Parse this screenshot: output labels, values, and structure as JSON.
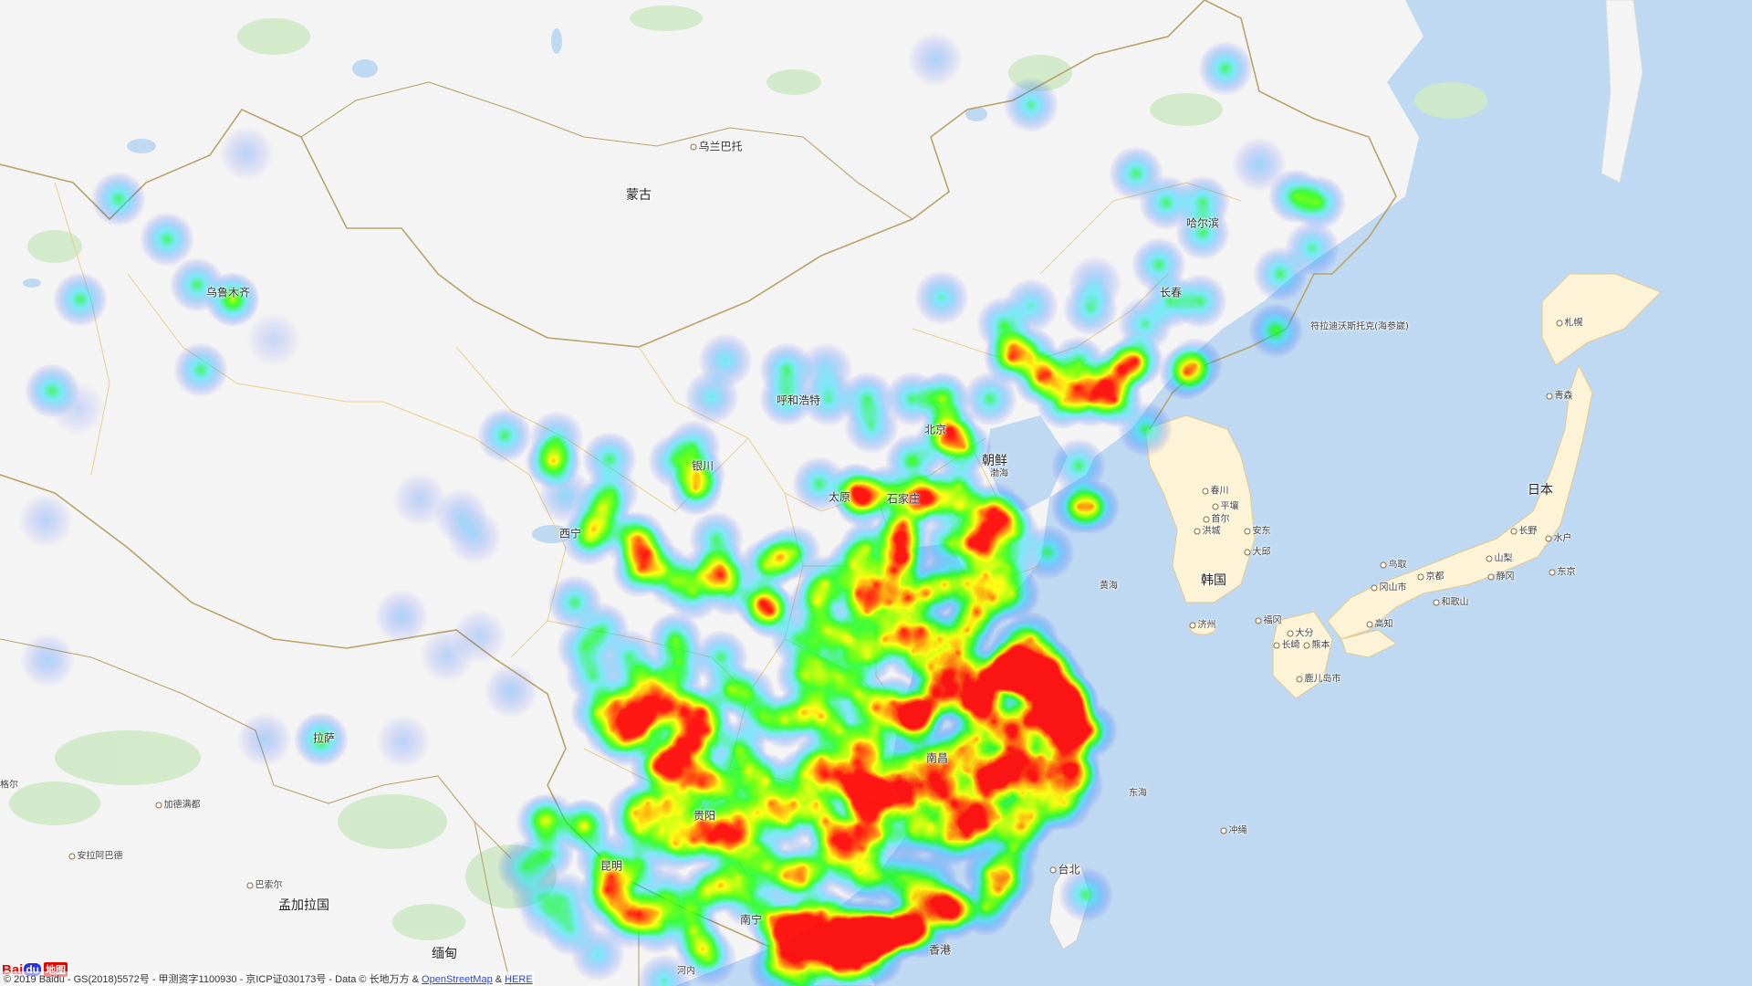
{
  "map": {
    "colors": {
      "sea": "#bfd9f2",
      "land": "#f4f4f4",
      "border_china": "#b8a36a",
      "border_province": "#e9cf8a",
      "korea_japan": "#fdf3d7",
      "forest": "#cfe9c7"
    },
    "labels": [
      {
        "text": "乌兰巴托",
        "cls": "city",
        "dot": true
      },
      {
        "text": "蒙古",
        "cls": "country",
        "dot": false
      },
      {
        "text": "哈尔滨",
        "cls": "city",
        "dot": false
      },
      {
        "text": "乌鲁木齐",
        "cls": "city",
        "dot": false
      },
      {
        "text": "长春",
        "cls": "city",
        "dot": false
      },
      {
        "text": "符拉迪沃斯托克(海参崴)",
        "cls": "small",
        "dot": false
      },
      {
        "text": "札幌",
        "cls": "small",
        "dot": true
      },
      {
        "text": "呼和浩特",
        "cls": "city",
        "dot": false
      },
      {
        "text": "北京",
        "cls": "city",
        "dot": false
      },
      {
        "text": "渤海",
        "cls": "small",
        "dot": false
      },
      {
        "text": "朝鲜",
        "cls": "country",
        "dot": false
      },
      {
        "text": "青森",
        "cls": "small",
        "dot": true
      },
      {
        "text": "银川",
        "cls": "city",
        "dot": false
      },
      {
        "text": "太原",
        "cls": "city",
        "dot": false
      },
      {
        "text": "石家庄",
        "cls": "city",
        "dot": false
      },
      {
        "text": "春川",
        "cls": "small",
        "dot": true
      },
      {
        "text": "平壤",
        "cls": "small",
        "dot": true
      },
      {
        "text": "首尔",
        "cls": "small",
        "dot": true
      },
      {
        "text": "日本",
        "cls": "country",
        "dot": false
      },
      {
        "text": "西宁",
        "cls": "city",
        "dot": false
      },
      {
        "text": "洪城",
        "cls": "small",
        "dot": true
      },
      {
        "text": "安东",
        "cls": "small",
        "dot": true
      },
      {
        "text": "长野",
        "cls": "small",
        "dot": true
      },
      {
        "text": "水户",
        "cls": "small",
        "dot": true
      },
      {
        "text": "大邱",
        "cls": "small",
        "dot": true
      },
      {
        "text": "鸟取",
        "cls": "small",
        "dot": true
      },
      {
        "text": "山梨",
        "cls": "small",
        "dot": true
      },
      {
        "text": "黄海",
        "cls": "small",
        "dot": false
      },
      {
        "text": "韩国",
        "cls": "country",
        "dot": false
      },
      {
        "text": "冈山市",
        "cls": "small",
        "dot": true
      },
      {
        "text": "京都",
        "cls": "small",
        "dot": true
      },
      {
        "text": "静冈",
        "cls": "small",
        "dot": true
      },
      {
        "text": "东京",
        "cls": "small",
        "dot": true
      },
      {
        "text": "和歌山",
        "cls": "small",
        "dot": true
      },
      {
        "text": "济州",
        "cls": "small",
        "dot": true
      },
      {
        "text": "福冈",
        "cls": "small",
        "dot": true
      },
      {
        "text": "高知",
        "cls": "small",
        "dot": true
      },
      {
        "text": "大分",
        "cls": "small",
        "dot": true
      },
      {
        "text": "长崎",
        "cls": "small",
        "dot": true
      },
      {
        "text": "熊本",
        "cls": "small",
        "dot": true
      },
      {
        "text": "鹿儿岛市",
        "cls": "small",
        "dot": true
      },
      {
        "text": "拉萨",
        "cls": "city",
        "dot": false
      },
      {
        "text": "格尔",
        "cls": "small",
        "dot": false
      },
      {
        "text": "加德满都",
        "cls": "small",
        "dot": true
      },
      {
        "text": "南昌",
        "cls": "city",
        "dot": false
      },
      {
        "text": "东海",
        "cls": "small",
        "dot": false
      },
      {
        "text": "贵阳",
        "cls": "city",
        "dot": false
      },
      {
        "text": "冲绳",
        "cls": "small",
        "dot": true
      },
      {
        "text": "安拉阿巴德",
        "cls": "small",
        "dot": true
      },
      {
        "text": "昆明",
        "cls": "city",
        "dot": false
      },
      {
        "text": "巴索尔",
        "cls": "small",
        "dot": true
      },
      {
        "text": "台北",
        "cls": "city",
        "dot": true
      },
      {
        "text": "孟加拉国",
        "cls": "country",
        "dot": false
      },
      {
        "text": "南宁",
        "cls": "city",
        "dot": false
      },
      {
        "text": "缅甸",
        "cls": "country",
        "dot": false
      },
      {
        "text": "香港",
        "cls": "city",
        "dot": false
      },
      {
        "text": "河内",
        "cls": "small",
        "dot": false
      }
    ]
  },
  "footer": {
    "logo_bai": "Bai",
    "logo_du": "du",
    "logo_ditu": "地图",
    "copyright_prefix": "© 2019 Baidu - GS(2018)5572号 - 甲测资字1100930 - 京ICP证030173号 - Data © 长地万方 & ",
    "osm_link": "OpenStreetMap",
    "amp": " & ",
    "here_link": "HERE"
  }
}
